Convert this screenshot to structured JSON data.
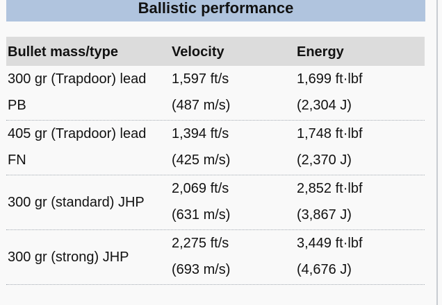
{
  "title": "Ballistic performance",
  "headers": {
    "mass_type": "Bullet mass/type",
    "velocity": "Velocity",
    "energy": "Energy"
  },
  "rows": [
    {
      "type_line1": "300 gr (Trapdoor) lead",
      "type_line2": "PB",
      "velocity": "1,597 ft/s",
      "velocity_metric": "(487 m/s)",
      "energy": "1,699 ft·lbf",
      "energy_metric": "(2,304 J)"
    },
    {
      "type_line1": "405 gr (Trapdoor) lead",
      "type_line2": "FN",
      "velocity": "1,394 ft/s",
      "velocity_metric": "(425 m/s)",
      "energy": "1,748 ft·lbf",
      "energy_metric": "(2,370 J)"
    },
    {
      "type_line1": "300 gr (standard) JHP",
      "type_line2": "",
      "velocity": "2,069 ft/s",
      "velocity_metric": "(631 m/s)",
      "energy": "2,852 ft·lbf",
      "energy_metric": "(3,867 J)"
    },
    {
      "type_line1": "300 gr (strong) JHP",
      "type_line2": "",
      "velocity": "2,275 ft/s",
      "velocity_metric": "(693 m/s)",
      "energy": "3,449 ft·lbf",
      "energy_metric": "(4,676 J)"
    }
  ]
}
